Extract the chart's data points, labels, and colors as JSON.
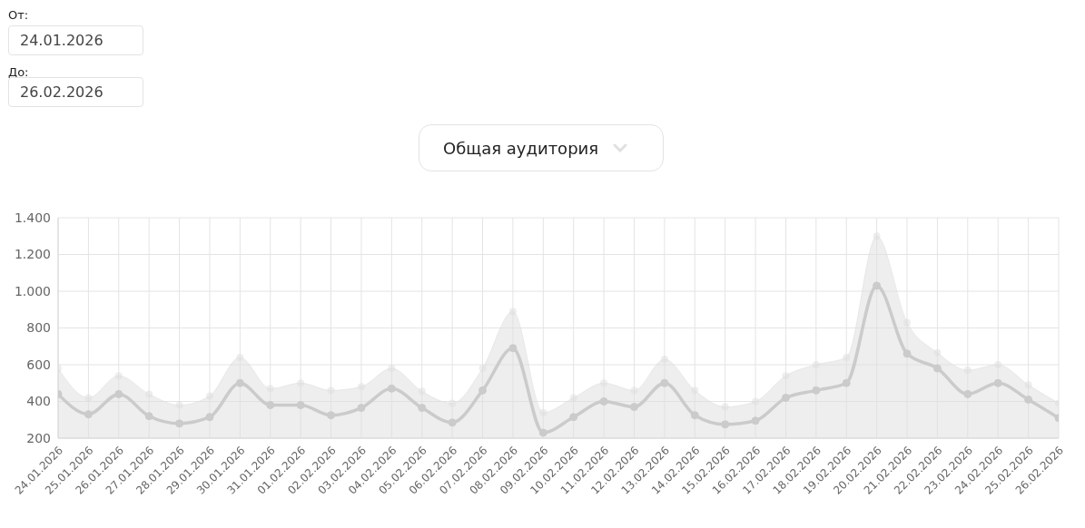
{
  "chart_data": {
    "type": "line",
    "categories": [
      "24.01.2026",
      "25.01.2026",
      "26.01.2026",
      "27.01.2026",
      "28.01.2026",
      "29.01.2026",
      "30.01.2026",
      "31.01.2026",
      "01.02.2026",
      "02.02.2026",
      "03.02.2026",
      "04.02.2026",
      "05.02.2026",
      "06.02.2026",
      "07.02.2026",
      "08.02.2026",
      "09.02.2026",
      "10.02.2026",
      "11.02.2026",
      "12.02.2026",
      "13.02.2026",
      "14.02.2026",
      "15.02.2026",
      "16.02.2026",
      "17.02.2026",
      "18.02.2026",
      "19.02.2026",
      "20.02.2026",
      "21.02.2026",
      "22.02.2026",
      "23.02.2026",
      "24.02.2026",
      "25.02.2026",
      "26.02.2026"
    ],
    "series": [
      {
        "type": "area",
        "color": "#dddddd",
        "values": [
          580,
          420,
          540,
          440,
          380,
          430,
          640,
          470,
          500,
          460,
          480,
          580,
          455,
          390,
          580,
          890,
          340,
          420,
          500,
          460,
          630,
          460,
          370,
          400,
          540,
          600,
          640,
          1300,
          830,
          665,
          570,
          600,
          490,
          390
        ]
      },
      {
        "color": "#cbcbcb",
        "values": [
          440,
          330,
          440,
          320,
          280,
          315,
          500,
          380,
          380,
          325,
          365,
          470,
          365,
          285,
          460,
          690,
          230,
          315,
          400,
          370,
          500,
          325,
          275,
          295,
          420,
          460,
          500,
          1030,
          660,
          580,
          440,
          500,
          410,
          310
        ]
      }
    ],
    "ylim": [
      200,
      1400
    ],
    "yticks": [
      200,
      400,
      600,
      800,
      {
        "value": 1000,
        "label": "1.000"
      },
      {
        "value": 1200,
        "label": "1.200"
      },
      {
        "value": 1400,
        "label": "1.400"
      }
    ],
    "grid": true,
    "legend": false,
    "marker": "circle",
    "line_style": "solid",
    "annotations": [
      "От:",
      "24.01.2026",
      "До:",
      "26.02.2026",
      "Общая аудитория"
    ]
  }
}
